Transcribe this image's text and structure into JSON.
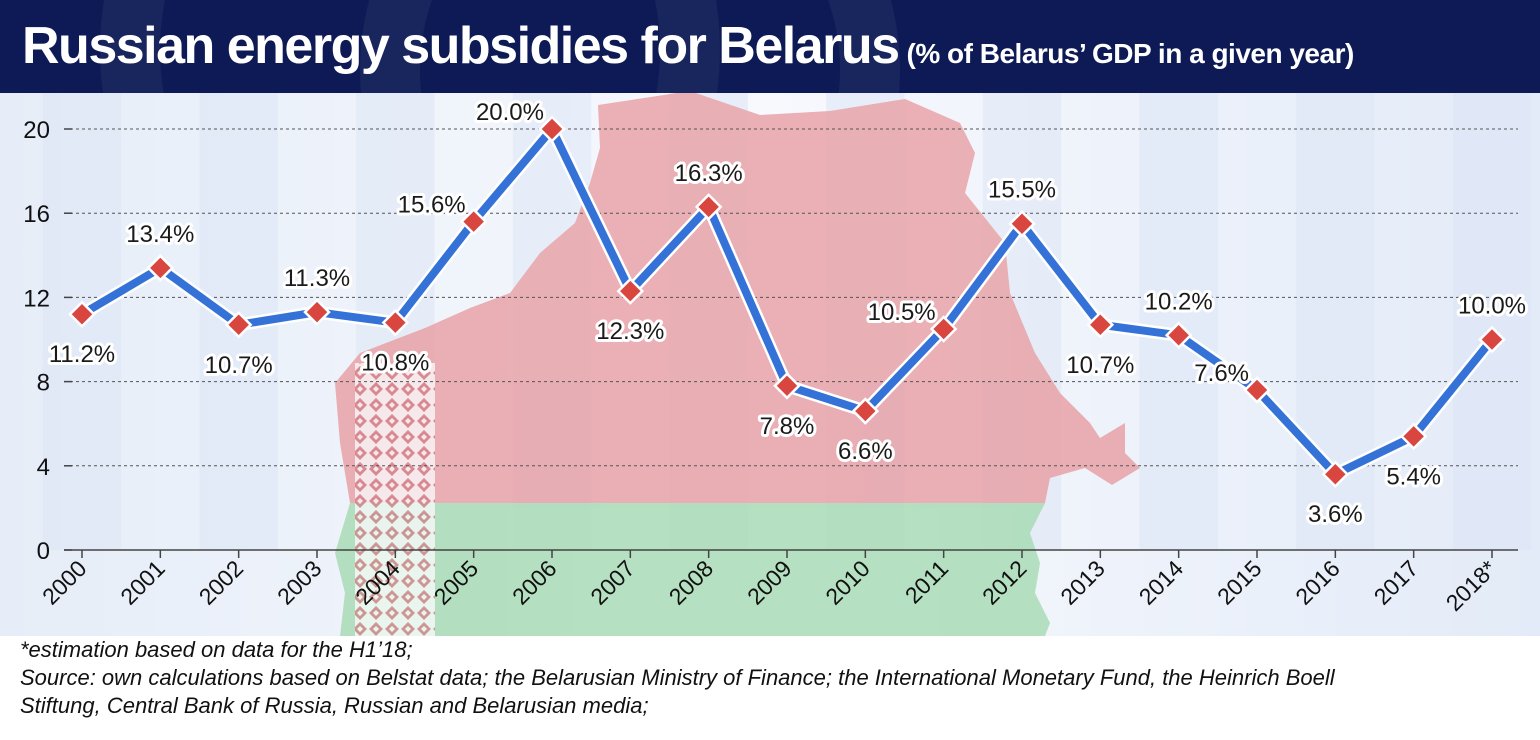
{
  "header": {
    "title": "Russian energy subsidies for Belarus",
    "subtitle": "(% of Belarus’ GDP in a given year)"
  },
  "colors": {
    "header_bg": "#0d1a55",
    "line": "#3572d8",
    "marker": "#d9463f",
    "stripe": "#dce6f6",
    "flag_red": "#e8a3a8",
    "flag_green": "#a9dcb6"
  },
  "chart_data": {
    "type": "line",
    "title": "Russian energy subsidies for Belarus",
    "subtitle": "(% of Belarus’ GDP in a given year)",
    "xlabel": "",
    "ylabel": "",
    "ylim": [
      0,
      21
    ],
    "yticks": [
      0,
      4,
      8,
      12,
      16,
      20
    ],
    "grid": "horizontal dashed",
    "legend": "none",
    "categories": [
      "2000",
      "2001",
      "2002",
      "2003",
      "2004",
      "2005",
      "2006",
      "2007",
      "2008",
      "2009",
      "2010",
      "2011",
      "2012",
      "2013",
      "2014",
      "2015",
      "2016",
      "2017",
      "2018*"
    ],
    "series": [
      {
        "values": [
          11.2,
          13.4,
          10.7,
          11.3,
          10.8,
          15.6,
          20.0,
          12.3,
          16.3,
          7.8,
          6.6,
          10.5,
          15.5,
          10.7,
          10.2,
          7.6,
          3.6,
          5.4,
          10.0
        ]
      }
    ],
    "data_labels": [
      "11.2%",
      "13.4%",
      "10.7%",
      "11.3%",
      "10.8%",
      "15.6%",
      "20.0%",
      "12.3%",
      "16.3%",
      "7.8%",
      "6.6%",
      "10.5%",
      "15.5%",
      "10.7%",
      "10.2%",
      "7.6%",
      "3.6%",
      "5.4%",
      "10.0%"
    ],
    "label_positions": [
      "below",
      "above",
      "below",
      "above",
      "below",
      "left",
      "left",
      "below",
      "above",
      "below",
      "below",
      "left",
      "above",
      "below",
      "above",
      "left",
      "below",
      "below",
      "above"
    ]
  },
  "footnotes": {
    "estimation": "*estimation based on data for the H1’18;",
    "source_line1": "Source: own calculations based on Belstat data; the Belarusian Ministry of Finance; the International Monetary Fund, the Heinrich Boell",
    "source_line2": "Stiftung, Central Bank of Russia, Russian and Belarusian media;"
  }
}
